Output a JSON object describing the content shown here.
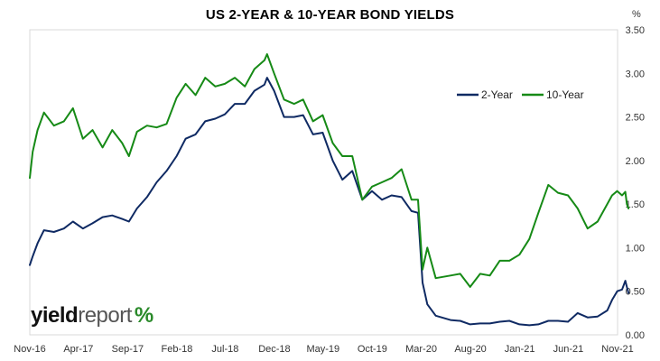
{
  "chart_data": {
    "type": "line",
    "title": "US 2-YEAR & 10-YEAR BOND YIELDS",
    "unit_label": "%",
    "brand": {
      "part1": "yield",
      "part2": "report",
      "mark": "%"
    },
    "x_ticks": [
      "Nov-16",
      "Apr-17",
      "Sep-17",
      "Feb-18",
      "Jul-18",
      "Dec-18",
      "May-19",
      "Oct-19",
      "Mar-20",
      "Aug-20",
      "Jan-21",
      "Jun-21",
      "Nov-21"
    ],
    "x_range": [
      "Nov-16",
      "Nov-21"
    ],
    "y_ticks": [
      "0.00",
      "0.50",
      "1.00",
      "1.50",
      "2.00",
      "2.50",
      "3.00",
      "3.50"
    ],
    "ylim": [
      0,
      3.5
    ],
    "grid": false,
    "legend_position": "top-right",
    "series": [
      {
        "name": "2-Year",
        "color": "#0f2a63",
        "points": [
          [
            "2016-11-01",
            0.8
          ],
          [
            "2016-11-10",
            0.9
          ],
          [
            "2016-11-25",
            1.05
          ],
          [
            "2016-12-15",
            1.2
          ],
          [
            "2017-01-15",
            1.18
          ],
          [
            "2017-02-15",
            1.22
          ],
          [
            "2017-03-15",
            1.3
          ],
          [
            "2017-04-15",
            1.22
          ],
          [
            "2017-05-15",
            1.28
          ],
          [
            "2017-06-15",
            1.35
          ],
          [
            "2017-07-15",
            1.37
          ],
          [
            "2017-08-15",
            1.33
          ],
          [
            "2017-09-05",
            1.3
          ],
          [
            "2017-09-30",
            1.45
          ],
          [
            "2017-10-31",
            1.58
          ],
          [
            "2017-11-30",
            1.75
          ],
          [
            "2017-12-31",
            1.88
          ],
          [
            "2018-01-31",
            2.05
          ],
          [
            "2018-02-28",
            2.25
          ],
          [
            "2018-03-31",
            2.3
          ],
          [
            "2018-04-30",
            2.45
          ],
          [
            "2018-05-31",
            2.48
          ],
          [
            "2018-06-30",
            2.53
          ],
          [
            "2018-07-31",
            2.65
          ],
          [
            "2018-08-31",
            2.65
          ],
          [
            "2018-09-30",
            2.8
          ],
          [
            "2018-10-31",
            2.87
          ],
          [
            "2018-11-08",
            2.95
          ],
          [
            "2018-11-30",
            2.8
          ],
          [
            "2018-12-31",
            2.5
          ],
          [
            "2019-01-31",
            2.5
          ],
          [
            "2019-02-28",
            2.52
          ],
          [
            "2019-03-31",
            2.3
          ],
          [
            "2019-04-30",
            2.32
          ],
          [
            "2019-05-31",
            2.0
          ],
          [
            "2019-06-30",
            1.78
          ],
          [
            "2019-07-31",
            1.88
          ],
          [
            "2019-08-31",
            1.55
          ],
          [
            "2019-09-30",
            1.65
          ],
          [
            "2019-10-31",
            1.55
          ],
          [
            "2019-11-30",
            1.6
          ],
          [
            "2019-12-31",
            1.58
          ],
          [
            "2020-01-31",
            1.42
          ],
          [
            "2020-02-20",
            1.4
          ],
          [
            "2020-03-05",
            0.6
          ],
          [
            "2020-03-20",
            0.35
          ],
          [
            "2020-04-15",
            0.22
          ],
          [
            "2020-05-31",
            0.17
          ],
          [
            "2020-06-30",
            0.16
          ],
          [
            "2020-07-31",
            0.12
          ],
          [
            "2020-08-31",
            0.13
          ],
          [
            "2020-09-30",
            0.13
          ],
          [
            "2020-10-31",
            0.15
          ],
          [
            "2020-11-30",
            0.16
          ],
          [
            "2020-12-31",
            0.12
          ],
          [
            "2021-01-31",
            0.11
          ],
          [
            "2021-02-28",
            0.12
          ],
          [
            "2021-03-31",
            0.16
          ],
          [
            "2021-04-30",
            0.16
          ],
          [
            "2021-05-31",
            0.15
          ],
          [
            "2021-06-30",
            0.25
          ],
          [
            "2021-07-31",
            0.2
          ],
          [
            "2021-08-31",
            0.21
          ],
          [
            "2021-09-30",
            0.28
          ],
          [
            "2021-10-15",
            0.4
          ],
          [
            "2021-10-31",
            0.5
          ],
          [
            "2021-11-15",
            0.52
          ],
          [
            "2021-11-25",
            0.62
          ],
          [
            "2021-11-30",
            0.55
          ],
          [
            "2021-12-05",
            0.48
          ]
        ]
      },
      {
        "name": "10-Year",
        "color": "#168a16",
        "points": [
          [
            "2016-11-01",
            1.8
          ],
          [
            "2016-11-10",
            2.1
          ],
          [
            "2016-11-25",
            2.35
          ],
          [
            "2016-12-15",
            2.55
          ],
          [
            "2017-01-15",
            2.4
          ],
          [
            "2017-02-15",
            2.45
          ],
          [
            "2017-03-15",
            2.6
          ],
          [
            "2017-04-15",
            2.25
          ],
          [
            "2017-05-15",
            2.35
          ],
          [
            "2017-06-15",
            2.15
          ],
          [
            "2017-07-15",
            2.35
          ],
          [
            "2017-08-15",
            2.2
          ],
          [
            "2017-09-05",
            2.05
          ],
          [
            "2017-09-30",
            2.33
          ],
          [
            "2017-10-31",
            2.4
          ],
          [
            "2017-11-30",
            2.38
          ],
          [
            "2017-12-31",
            2.42
          ],
          [
            "2018-01-31",
            2.72
          ],
          [
            "2018-02-28",
            2.88
          ],
          [
            "2018-03-31",
            2.75
          ],
          [
            "2018-04-30",
            2.95
          ],
          [
            "2018-05-31",
            2.85
          ],
          [
            "2018-06-30",
            2.88
          ],
          [
            "2018-07-31",
            2.95
          ],
          [
            "2018-08-31",
            2.85
          ],
          [
            "2018-09-30",
            3.05
          ],
          [
            "2018-10-31",
            3.15
          ],
          [
            "2018-11-08",
            3.22
          ],
          [
            "2018-11-30",
            3.0
          ],
          [
            "2018-12-31",
            2.7
          ],
          [
            "2019-01-31",
            2.65
          ],
          [
            "2019-02-28",
            2.7
          ],
          [
            "2019-03-31",
            2.45
          ],
          [
            "2019-04-30",
            2.52
          ],
          [
            "2019-05-31",
            2.2
          ],
          [
            "2019-06-30",
            2.05
          ],
          [
            "2019-07-31",
            2.05
          ],
          [
            "2019-08-31",
            1.55
          ],
          [
            "2019-09-30",
            1.7
          ],
          [
            "2019-10-31",
            1.75
          ],
          [
            "2019-11-30",
            1.8
          ],
          [
            "2019-12-31",
            1.9
          ],
          [
            "2020-01-31",
            1.55
          ],
          [
            "2020-02-20",
            1.55
          ],
          [
            "2020-03-05",
            0.75
          ],
          [
            "2020-03-20",
            1.0
          ],
          [
            "2020-04-15",
            0.65
          ],
          [
            "2020-05-31",
            0.68
          ],
          [
            "2020-06-30",
            0.7
          ],
          [
            "2020-07-31",
            0.55
          ],
          [
            "2020-08-31",
            0.7
          ],
          [
            "2020-09-30",
            0.68
          ],
          [
            "2020-10-31",
            0.85
          ],
          [
            "2020-11-30",
            0.85
          ],
          [
            "2020-12-31",
            0.92
          ],
          [
            "2021-01-31",
            1.1
          ],
          [
            "2021-02-28",
            1.4
          ],
          [
            "2021-03-31",
            1.72
          ],
          [
            "2021-04-30",
            1.63
          ],
          [
            "2021-05-31",
            1.6
          ],
          [
            "2021-06-30",
            1.45
          ],
          [
            "2021-07-31",
            1.22
          ],
          [
            "2021-08-31",
            1.3
          ],
          [
            "2021-09-30",
            1.5
          ],
          [
            "2021-10-15",
            1.6
          ],
          [
            "2021-10-31",
            1.65
          ],
          [
            "2021-11-15",
            1.6
          ],
          [
            "2021-11-25",
            1.64
          ],
          [
            "2021-11-30",
            1.5
          ],
          [
            "2021-12-05",
            1.45
          ]
        ]
      }
    ]
  }
}
